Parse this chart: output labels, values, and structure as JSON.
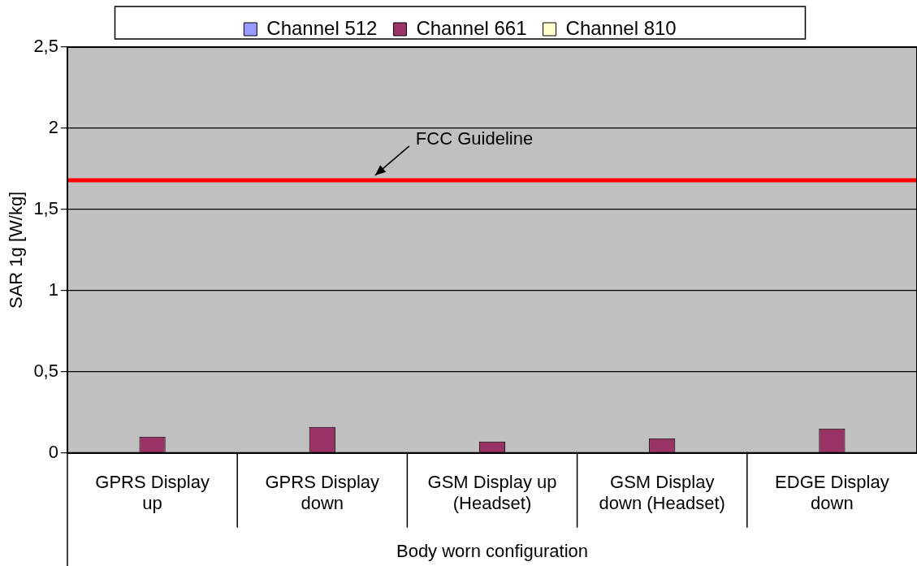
{
  "chart_data": {
    "type": "bar",
    "ylabel": "SAR 1g [W/kg]",
    "xlabel": "Body worn configuration",
    "categories": [
      "GPRS Display up",
      "GPRS Display down",
      "GSM Display up (Headset)",
      "GSM Display down (Headset)",
      "EDGE Display down"
    ],
    "series": [
      {
        "name": "Channel 512",
        "color": "#9999ff",
        "values": [
          null,
          null,
          null,
          null,
          null
        ]
      },
      {
        "name": "Channel 661",
        "color": "#993366",
        "values": [
          0.1,
          0.16,
          0.07,
          0.09,
          0.15
        ]
      },
      {
        "name": "Channel 810",
        "color": "#ffffcc",
        "values": [
          null,
          null,
          null,
          null,
          null
        ]
      }
    ],
    "ylim": [
      0,
      2.5
    ],
    "yticks": [
      0,
      {
        "value": 0.5,
        "label": "0,5"
      },
      1,
      {
        "value": 1.5,
        "label": "1,5"
      },
      2,
      {
        "value": 2.5,
        "label": "2,5"
      }
    ],
    "ref_lines": [
      {
        "axis": "y",
        "value": 1.68,
        "label": "FCC Guideline",
        "color": "#ff0000"
      }
    ],
    "grid": "y",
    "legend": "top"
  }
}
